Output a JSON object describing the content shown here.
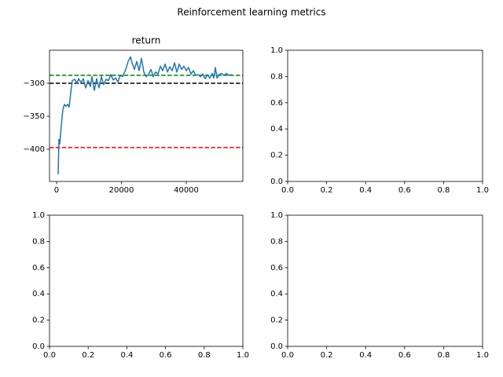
{
  "figure_title": "Reinforcement learning metrics",
  "chart_data": [
    {
      "type": "line",
      "title": "return",
      "x": [
        485,
        727,
        970,
        1455,
        1939,
        2424,
        2909,
        3394,
        3879,
        4364,
        4848,
        5576,
        6303,
        6788,
        7515,
        8242,
        8970,
        9697,
        10424,
        10909,
        11636,
        12364,
        13091,
        13818,
        14545,
        15273,
        16000,
        16727,
        17455,
        18182,
        18909,
        19636,
        20364,
        21333,
        22061,
        22788,
        23273,
        24000,
        24727,
        25455,
        26182,
        26909,
        27636,
        28364,
        29091,
        29818,
        30545,
        31273,
        32000,
        32727,
        33455,
        34182,
        34909,
        35636,
        36364,
        37091,
        37818,
        38545,
        39273,
        40000,
        40727,
        41455,
        42182,
        42909,
        43636,
        44364,
        45091,
        45818,
        46545,
        47273,
        48000,
        48485,
        48970,
        49455,
        50182,
        50909,
        51636,
        52364,
        53091,
        53818,
        54545
      ],
      "series": [
        {
          "color": "#1f77b4",
          "values": [
            -438,
            -385,
            -392,
            -364,
            -340,
            -332,
            -335,
            -332,
            -336,
            -314,
            -296,
            -294,
            -300,
            -293,
            -299,
            -293,
            -307,
            -296,
            -305,
            -290,
            -311,
            -293,
            -307,
            -290,
            -302,
            -294,
            -296,
            -287,
            -295,
            -292,
            -298,
            -288,
            -290,
            -279,
            -267,
            -260,
            -269,
            -279,
            -267,
            -281,
            -262,
            -283,
            -290,
            -287,
            -279,
            -290,
            -283,
            -286,
            -274,
            -281,
            -271,
            -283,
            -275,
            -281,
            -269,
            -283,
            -271,
            -279,
            -274,
            -281,
            -276,
            -286,
            -281,
            -288,
            -287,
            -290,
            -286,
            -293,
            -287,
            -292,
            -285,
            -292,
            -276,
            -292,
            -287,
            -285,
            -288,
            -285,
            -288,
            -287,
            -288
          ]
        }
      ],
      "hlines": [
        {
          "value": -288,
          "color": "#008000"
        },
        {
          "value": -300,
          "color": "#000000"
        },
        {
          "value": -397.5,
          "color": "#ff0000"
        }
      ],
      "xlim": [
        -2180,
        57450
      ],
      "ylim": [
        -448.8,
        -250
      ],
      "xticks": [
        0,
        20000,
        40000
      ],
      "yticks": [
        {
          "value": -400,
          "label": "−400"
        },
        {
          "value": -350,
          "label": "−350"
        },
        {
          "value": -300,
          "label": "−300"
        }
      ]
    },
    {
      "type": "line",
      "xlim": [
        0,
        1
      ],
      "ylim": [
        0,
        1
      ],
      "xticks": [
        {
          "value": 0,
          "label": "0.0"
        },
        {
          "value": 0.2,
          "label": "0.2"
        },
        {
          "value": 0.4,
          "label": "0.4"
        },
        {
          "value": 0.6,
          "label": "0.6"
        },
        {
          "value": 0.8,
          "label": "0.8"
        },
        {
          "value": 1,
          "label": "1.0"
        }
      ],
      "yticks": [
        {
          "value": 0,
          "label": "0.0"
        },
        {
          "value": 0.2,
          "label": "0.2"
        },
        {
          "value": 0.4,
          "label": "0.4"
        },
        {
          "value": 0.6,
          "label": "0.6"
        },
        {
          "value": 0.8,
          "label": "0.8"
        },
        {
          "value": 1,
          "label": "1.0"
        }
      ]
    },
    {
      "type": "line",
      "xlim": [
        0,
        1
      ],
      "ylim": [
        0,
        1
      ],
      "xticks": [
        {
          "value": 0,
          "label": "0.0"
        },
        {
          "value": 0.2,
          "label": "0.2"
        },
        {
          "value": 0.4,
          "label": "0.4"
        },
        {
          "value": 0.6,
          "label": "0.6"
        },
        {
          "value": 0.8,
          "label": "0.8"
        },
        {
          "value": 1,
          "label": "1.0"
        }
      ],
      "yticks": [
        {
          "value": 0,
          "label": "0.0"
        },
        {
          "value": 0.2,
          "label": "0.2"
        },
        {
          "value": 0.4,
          "label": "0.4"
        },
        {
          "value": 0.6,
          "label": "0.6"
        },
        {
          "value": 0.8,
          "label": "0.8"
        },
        {
          "value": 1,
          "label": "1.0"
        }
      ]
    },
    {
      "type": "line",
      "xlim": [
        0,
        1
      ],
      "ylim": [
        0,
        1
      ],
      "xticks": [
        {
          "value": 0,
          "label": "0.0"
        },
        {
          "value": 0.2,
          "label": "0.2"
        },
        {
          "value": 0.4,
          "label": "0.4"
        },
        {
          "value": 0.6,
          "label": "0.6"
        },
        {
          "value": 0.8,
          "label": "0.8"
        },
        {
          "value": 1,
          "label": "1.0"
        }
      ],
      "yticks": [
        {
          "value": 0,
          "label": "0.0"
        },
        {
          "value": 0.2,
          "label": "0.2"
        },
        {
          "value": 0.4,
          "label": "0.4"
        },
        {
          "value": 0.6,
          "label": "0.6"
        },
        {
          "value": 0.8,
          "label": "0.8"
        },
        {
          "value": 1,
          "label": "1.0"
        }
      ]
    }
  ]
}
